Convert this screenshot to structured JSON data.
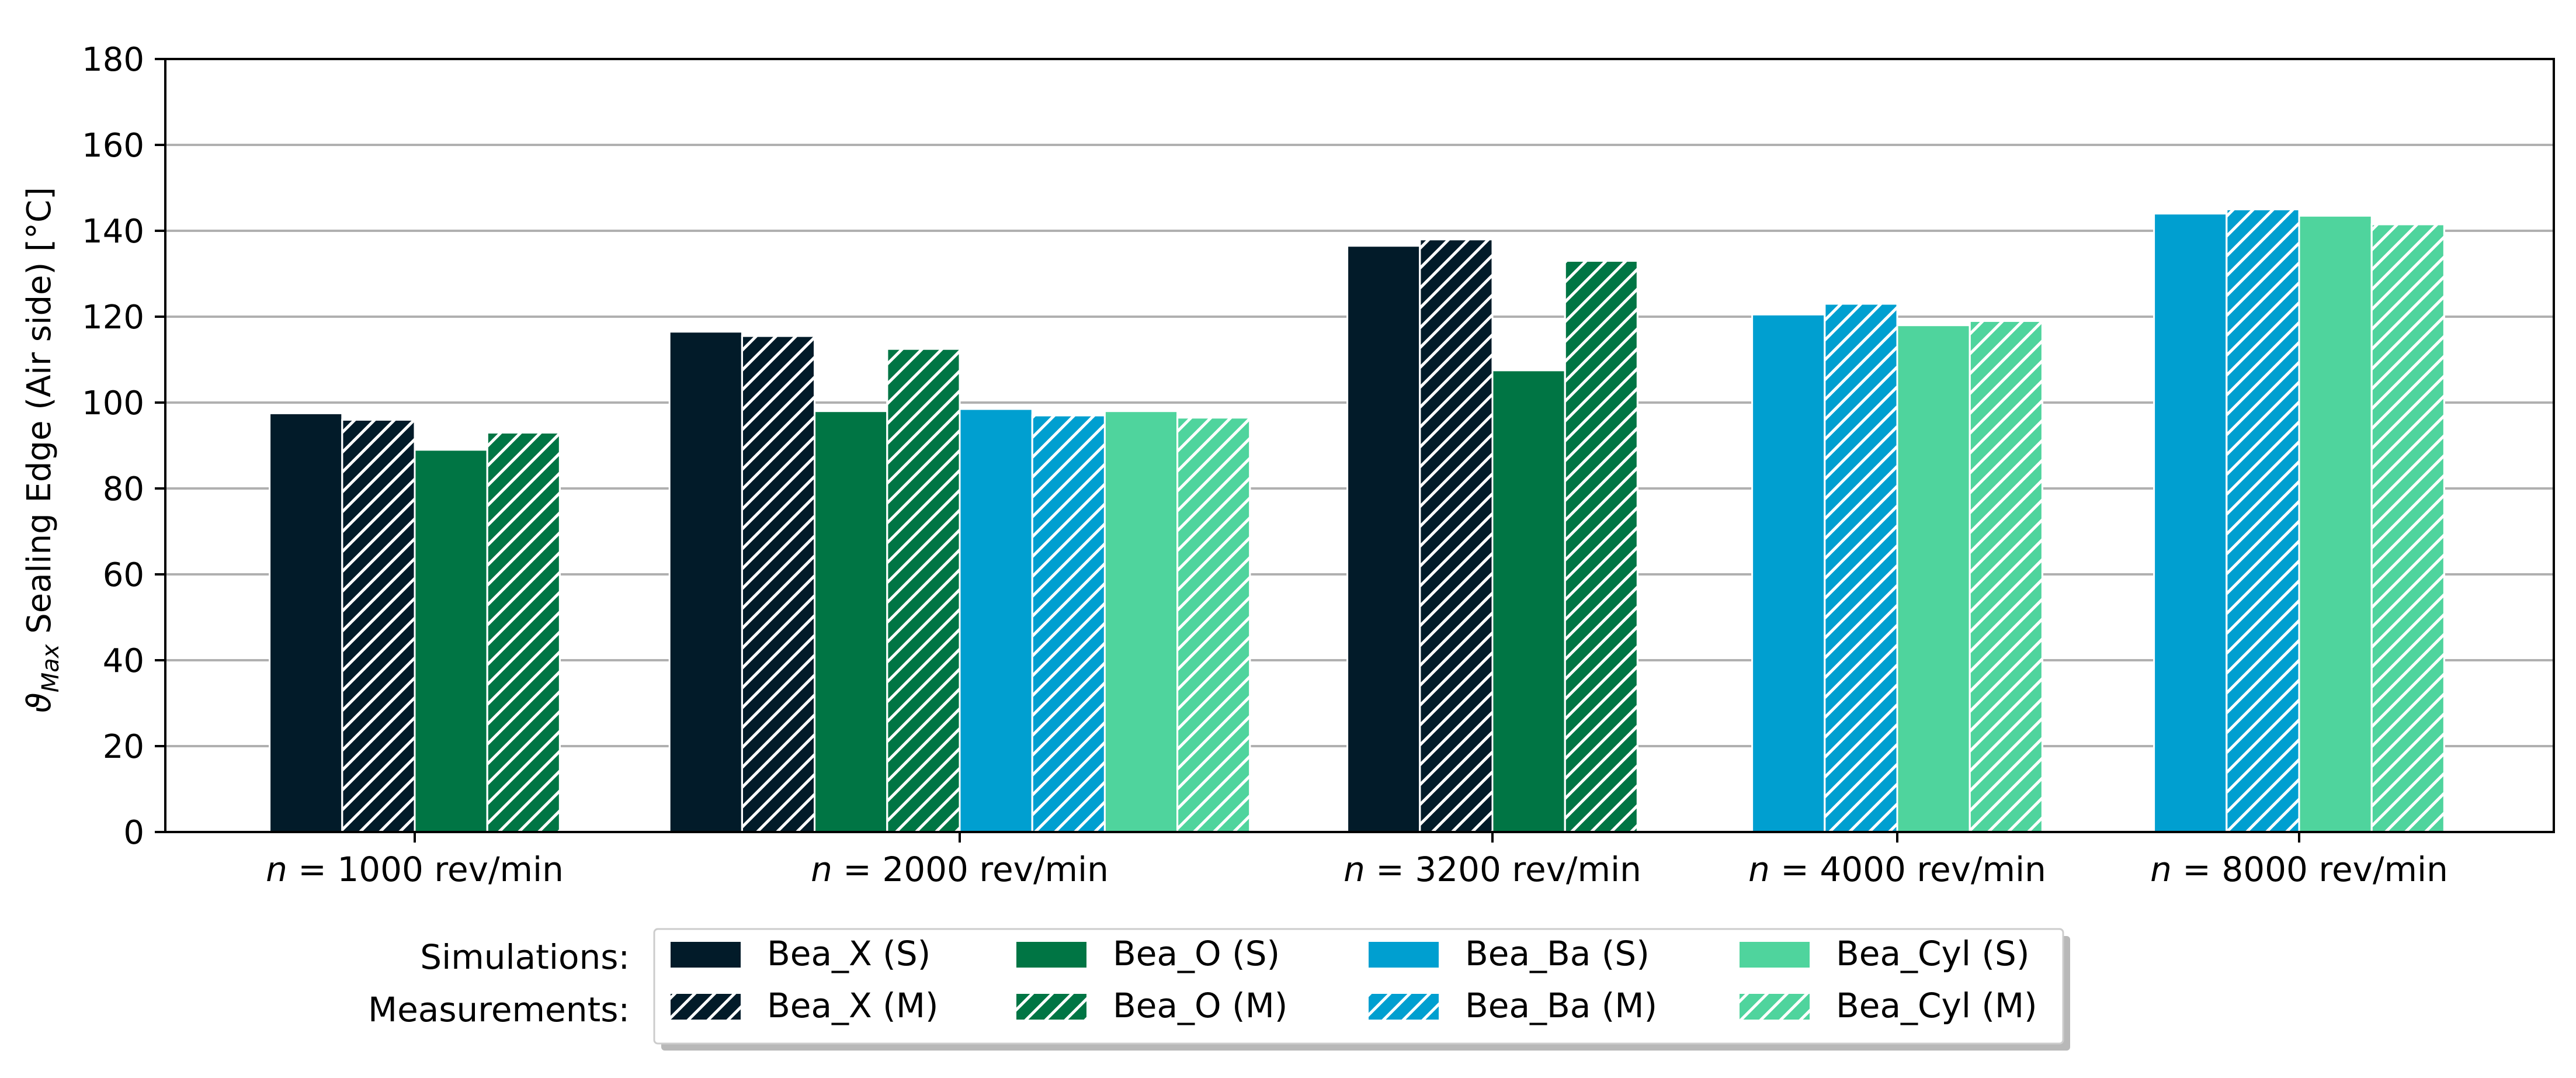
{
  "chart_data": {
    "type": "bar",
    "title": "",
    "xlabel": "",
    "ylabel_symbol": "ϑ",
    "ylabel_subscript": "Max",
    "ylabel_text": " Sealing Edge (Air side)  [°C]",
    "ylim": [
      0,
      180
    ],
    "yticks": [
      0,
      20,
      40,
      60,
      80,
      100,
      120,
      140,
      160,
      180
    ],
    "grid": true,
    "categories": [
      {
        "var": "n",
        "rest": " = 1000 rev/min"
      },
      {
        "var": "n",
        "rest": " = 2000 rev/min"
      },
      {
        "var": "n",
        "rest": " = 3200 rev/min"
      },
      {
        "var": "n",
        "rest": " = 4000 rev/min"
      },
      {
        "var": "n",
        "rest": " = 8000 rev/min"
      }
    ],
    "series": [
      {
        "name": "Bea_X (S)",
        "color": "#021b29",
        "hatch": false,
        "values": [
          97.5,
          116.5,
          136.5,
          null,
          null
        ]
      },
      {
        "name": "Bea_X (M)",
        "color": "#021b29",
        "hatch": true,
        "values": [
          96,
          115.5,
          138,
          null,
          null
        ]
      },
      {
        "name": "Bea_O (S)",
        "color": "#007544",
        "hatch": false,
        "values": [
          89,
          98,
          107.5,
          null,
          null
        ]
      },
      {
        "name": "Bea_O (M)",
        "color": "#007544",
        "hatch": true,
        "values": [
          93,
          112.5,
          133,
          null,
          null
        ]
      },
      {
        "name": "Bea_Ba (S)",
        "color": "#009fd0",
        "hatch": false,
        "values": [
          null,
          98.5,
          null,
          120.5,
          144
        ]
      },
      {
        "name": "Bea_Ba (M)",
        "color": "#009fd0",
        "hatch": true,
        "values": [
          null,
          97,
          null,
          123,
          145
        ]
      },
      {
        "name": "Bea_Cyl (S)",
        "color": "#4fd49d",
        "hatch": false,
        "values": [
          null,
          98,
          null,
          118,
          143.5
        ]
      },
      {
        "name": "Bea_Cyl (M)",
        "color": "#4fd49d",
        "hatch": true,
        "values": [
          null,
          96.5,
          null,
          119,
          141.5
        ]
      }
    ],
    "legend": {
      "row_labels": [
        "Simulations:",
        "Measurements:"
      ],
      "placement": "bottom-center"
    }
  }
}
